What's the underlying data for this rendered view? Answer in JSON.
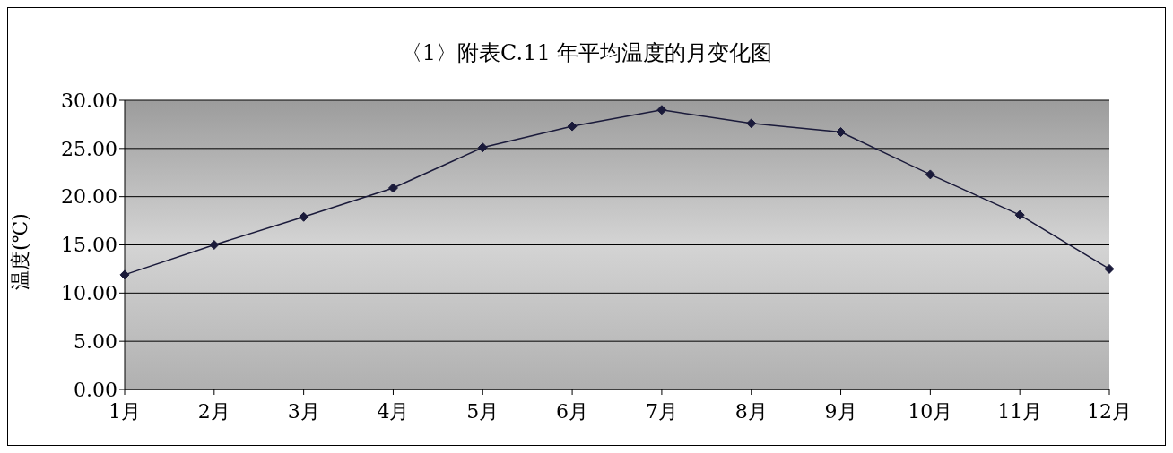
{
  "chart_data": {
    "type": "line",
    "title": "〈1〉附表C.11 年平均温度的月变化图",
    "ylabel": "温度(℃)",
    "categories": [
      "1月",
      "2月",
      "3月",
      "4月",
      "5月",
      "6月",
      "7月",
      "8月",
      "9月",
      "10月",
      "11月",
      "12月"
    ],
    "series": [
      {
        "color": "#1a1a3a",
        "values": [
          11.9,
          15.0,
          17.9,
          20.9,
          25.1,
          27.3,
          29.0,
          27.6,
          26.7,
          22.3,
          18.1,
          12.5
        ]
      }
    ],
    "ylim": [
      0,
      30
    ],
    "yticks": [
      {
        "value": 0,
        "label": "0.00"
      },
      {
        "value": 5,
        "label": "5.00"
      },
      {
        "value": 10,
        "label": "10.00"
      },
      {
        "value": 15,
        "label": "15.00"
      },
      {
        "value": 20,
        "label": "20.00"
      },
      {
        "value": 25,
        "label": "25.00"
      },
      {
        "value": 30,
        "label": "30.00"
      }
    ],
    "grid": "y",
    "legend": false,
    "marker": "diamond",
    "line_style": "solid"
  }
}
